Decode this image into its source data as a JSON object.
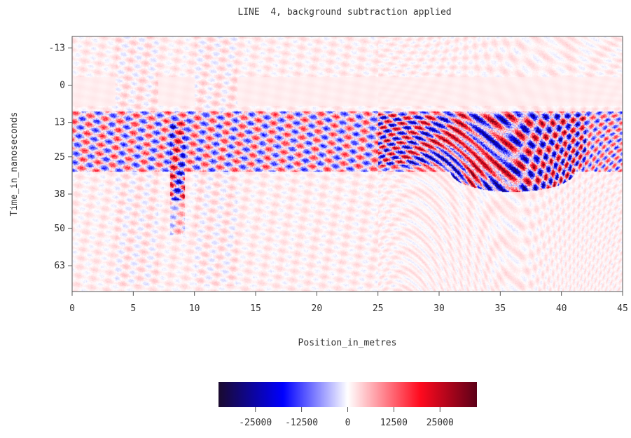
{
  "chart_data": {
    "type": "heatmap",
    "title": "LINE  4, background subtraction applied",
    "xlabel": "Position_in_metres",
    "ylabel": "Time_in_nanoseconds",
    "xlim": [
      0,
      45
    ],
    "ylim": [
      -17,
      72
    ],
    "y_inverted": true,
    "x_ticks": [
      0,
      5,
      10,
      15,
      20,
      25,
      30,
      35,
      40,
      45
    ],
    "x_tick_labels": [
      "0",
      "5",
      "10",
      "15",
      "20",
      "25",
      "30",
      "35",
      "40",
      "45"
    ],
    "y_ticks": [
      -13,
      0,
      13,
      25,
      38,
      50,
      63
    ],
    "y_tick_labels": [
      "-13",
      "0",
      "13",
      "25",
      "38",
      "50",
      "63"
    ],
    "grid": false,
    "colorbar": {
      "range": [
        -35000,
        35000
      ],
      "ticks": [
        -25000,
        -12500,
        0,
        12500,
        25000
      ],
      "tick_labels": [
        "-25000",
        "-12500",
        "0",
        "12500",
        "25000"
      ],
      "colors": [
        "#1a0a2e",
        "#0000ff",
        "#ffffff",
        "#ff0a1e",
        "#5c0018"
      ]
    },
    "features": [
      {
        "name": "direct-wave band",
        "x": [
          0,
          45
        ],
        "y": [
          -3,
          7
        ],
        "amplitude": "low"
      },
      {
        "name": "strong reflection zone",
        "x": [
          0,
          45
        ],
        "y": [
          9,
          30
        ],
        "amplitude": "high"
      },
      {
        "name": "anomaly",
        "x": [
          32,
          40
        ],
        "y": [
          25,
          42
        ],
        "amplitude": "high"
      },
      {
        "name": "vertical noise column",
        "x": [
          8,
          9
        ],
        "y": [
          13,
          50
        ],
        "amplitude": "medium"
      }
    ]
  }
}
